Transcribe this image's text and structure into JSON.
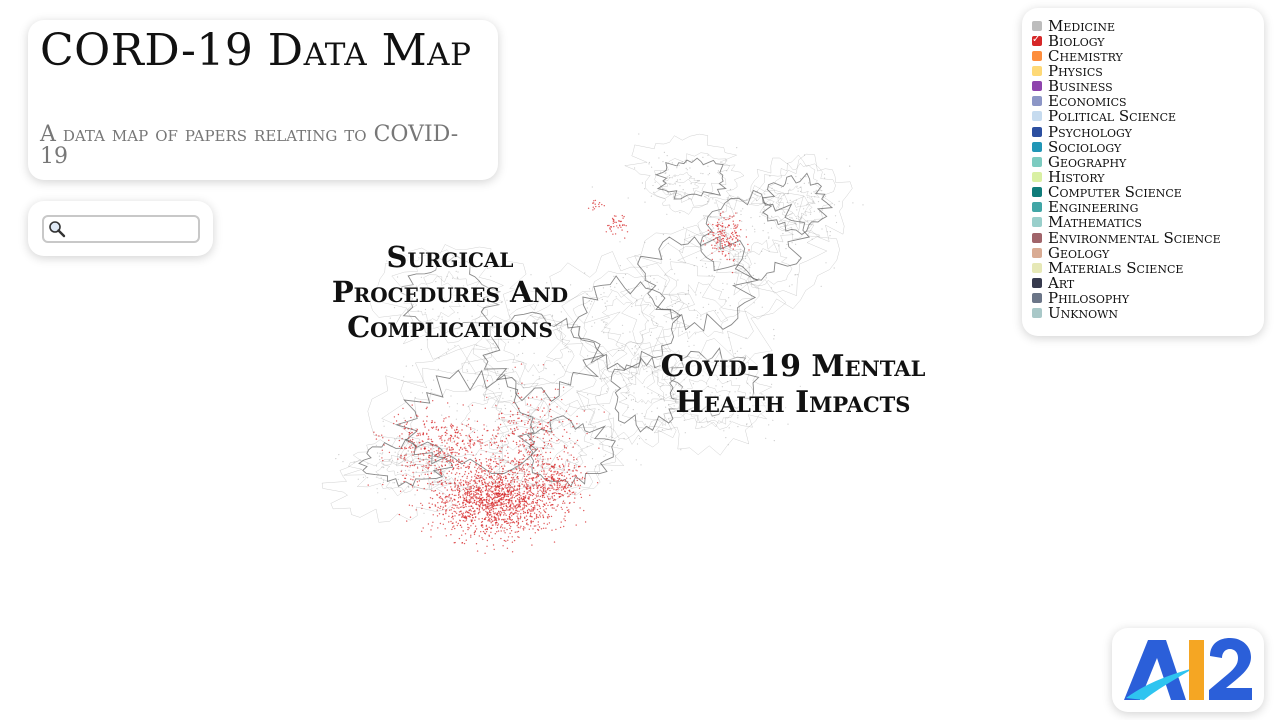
{
  "header": {
    "title": "CORD-19 Data Map",
    "subtitle": "A data map of papers relating to COVID-19"
  },
  "search": {
    "placeholder": "",
    "value": "",
    "icon": "search-icon"
  },
  "legend": {
    "items": [
      {
        "label": "Medicine",
        "color": "#bdbdbd",
        "checked": false
      },
      {
        "label": "Biology",
        "color": "#d62728",
        "checked": true
      },
      {
        "label": "Chemistry",
        "color": "#fd8d3c",
        "checked": false
      },
      {
        "label": "Physics",
        "color": "#fed976",
        "checked": false
      },
      {
        "label": "Business",
        "color": "#8e44ad",
        "checked": false
      },
      {
        "label": "Economics",
        "color": "#8c96c6",
        "checked": false
      },
      {
        "label": "Political Science",
        "color": "#c6dbef",
        "checked": false
      },
      {
        "label": "Psychology",
        "color": "#2c4fa0",
        "checked": false
      },
      {
        "label": "Sociology",
        "color": "#2196b6",
        "checked": false
      },
      {
        "label": "Geography",
        "color": "#7ccbc0",
        "checked": false
      },
      {
        "label": "History",
        "color": "#d9f0a3",
        "checked": false
      },
      {
        "label": "Computer Science",
        "color": "#0f7c7a",
        "checked": false
      },
      {
        "label": "Engineering",
        "color": "#41a6a6",
        "checked": false
      },
      {
        "label": "Mathematics",
        "color": "#99cfcb",
        "checked": false
      },
      {
        "label": "Environmental Science",
        "color": "#a0646a",
        "checked": false
      },
      {
        "label": "Geology",
        "color": "#d9ab93",
        "checked": false
      },
      {
        "label": "Materials Science",
        "color": "#e6e8b6",
        "checked": false
      },
      {
        "label": "Art",
        "color": "#363a4d",
        "checked": false
      },
      {
        "label": "Philosophy",
        "color": "#6b7587",
        "checked": false
      },
      {
        "label": "Unknown",
        "color": "#a9c8c8",
        "checked": false
      }
    ]
  },
  "map": {
    "labels": {
      "surgical": "Surgical Procedures And Complications",
      "mental": "Covid-19 Mental Health Impacts"
    },
    "highlight_color": "#d62728",
    "outline_color": "#555555"
  },
  "logo": {
    "text": "AI2",
    "primary_color": "#2b5fd9",
    "accent_color": "#f5a623",
    "swoosh_color": "#2ec4f0"
  }
}
